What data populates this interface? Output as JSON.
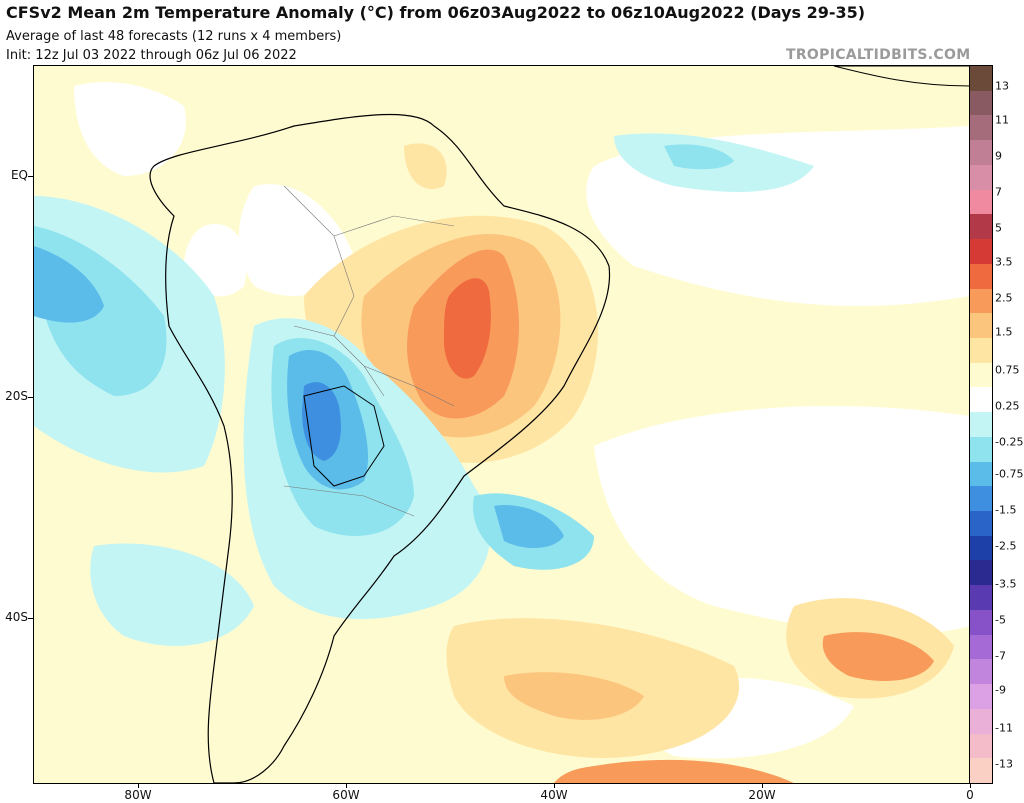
{
  "header": {
    "title": "CFSv2 Mean 2m Temperature Anomaly (°C) from 06z03Aug2022 to 06z10Aug2022 (Days 29-35)",
    "subtitle_1": "Average of last 48 forecasts (12 runs x 4 members)",
    "subtitle_2": "Init: 12z Jul 03 2022 through 06z Jul 06 2022",
    "credit": "TROPICALTIDBITS.COM"
  },
  "axes": {
    "lat_ticks": [
      {
        "label": "EQ",
        "lat": 0
      },
      {
        "label": "20S",
        "lat": -20
      },
      {
        "label": "40S",
        "lat": -40
      }
    ],
    "lon_ticks": [
      {
        "label": "80W",
        "lon": -80
      },
      {
        "label": "60W",
        "lon": -60
      },
      {
        "label": "40W",
        "lon": -40
      },
      {
        "label": "20W",
        "lon": -20
      },
      {
        "label": "0",
        "lon": 0
      }
    ],
    "lon_range": [
      -90,
      0
    ],
    "lat_range": [
      -55,
      10
    ]
  },
  "colorbar": {
    "labels": [
      "13",
      "11",
      "9",
      "7",
      "5",
      "3.5",
      "2.5",
      "1.5",
      "0.75",
      "0.25",
      "-0.25",
      "-0.75",
      "-1.5",
      "-2.5",
      "-3.5",
      "-5",
      "-7",
      "-9",
      "-11",
      "-13"
    ],
    "colors": [
      "#6b4a3a",
      "#8a5a62",
      "#a56c7c",
      "#c07f94",
      "#d98ea8",
      "#ef8aa0",
      "#b23a48",
      "#d63a35",
      "#f06a40",
      "#f79a5a",
      "#fcc57e",
      "#ffe5a3",
      "#fffbd0",
      "#ffffff",
      "#c4f5f5",
      "#8fe3ef",
      "#5bbcea",
      "#3e8fe0",
      "#2a64c8",
      "#1d3fa8",
      "#2a2a90",
      "#5a3ab0",
      "#8752c8",
      "#a66ad6",
      "#c285de",
      "#dca0e4",
      "#eab0d8",
      "#f4bcc8",
      "#fad0c4"
    ]
  },
  "map": {
    "description_layers": "anomaly",
    "regions": [
      {
        "kind": "warm-0.25",
        "color": "#fffbd0"
      },
      {
        "kind": "warm-0.75",
        "color": "#ffe5a3"
      },
      {
        "kind": "warm-1.5",
        "color": "#fcc57e"
      },
      {
        "kind": "warm-2.5",
        "color": "#f79a5a"
      },
      {
        "kind": "warm-3.5",
        "color": "#f06a40"
      },
      {
        "kind": "cool-0.25",
        "color": "#c4f5f5"
      },
      {
        "kind": "cool-0.75",
        "color": "#8fe3ef"
      },
      {
        "kind": "cool-1.5",
        "color": "#5bbcea"
      },
      {
        "kind": "cool-2.5",
        "color": "#3e8fe0"
      },
      {
        "kind": "cool-3.5",
        "color": "#2a64c8"
      }
    ]
  }
}
